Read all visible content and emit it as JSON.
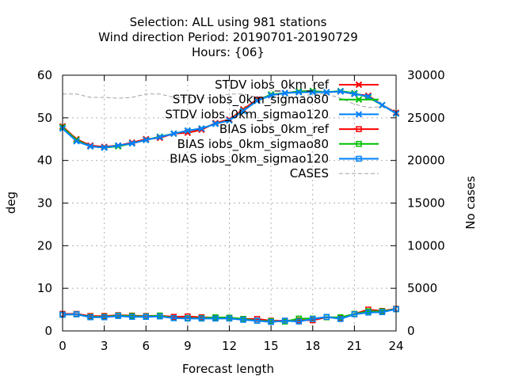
{
  "chart_data": {
    "type": "line",
    "title_lines": [
      "Selection: ALL using   981 stations",
      "Wind direction   Period: 20190701-20190729",
      "Hours: {06}"
    ],
    "xlabel": "Forecast length",
    "ylabel": "deg",
    "y2label": "No cases",
    "xlim": [
      0,
      24
    ],
    "ylim": [
      0,
      60
    ],
    "y2lim": [
      0,
      30000
    ],
    "xticks": [
      0,
      3,
      6,
      9,
      12,
      15,
      18,
      21,
      24
    ],
    "yticks": [
      0,
      10,
      20,
      30,
      40,
      50,
      60
    ],
    "y2ticks": [
      0,
      5000,
      10000,
      15000,
      20000,
      25000,
      30000
    ],
    "grid": "dotted",
    "legend_position": "top-right",
    "x": [
      0,
      1,
      2,
      3,
      4,
      5,
      6,
      7,
      8,
      9,
      10,
      11,
      12,
      13,
      14,
      15,
      16,
      17,
      18,
      19,
      20,
      21,
      22,
      23,
      24
    ],
    "series": [
      {
        "name": "STDV iobs_0km_ref",
        "color": "#ff0000",
        "marker": "x",
        "axis": "y1",
        "values": [
          48.0,
          45.0,
          43.5,
          43.2,
          43.5,
          44.2,
          45.0,
          45.3,
          46.3,
          46.5,
          47.2,
          48.8,
          49.6,
          52.0,
          54.3,
          55.3,
          55.8,
          56.2,
          56.3,
          56.0,
          56.2,
          55.6,
          55.2,
          53.0,
          51.2
        ]
      },
      {
        "name": "STDV iobs_0km_sigmao80",
        "color": "#00c000",
        "marker": "x",
        "axis": "y1",
        "values": [
          47.8,
          44.8,
          43.3,
          43.0,
          43.3,
          44.0,
          44.8,
          45.6,
          46.3,
          47.0,
          47.5,
          48.6,
          49.4,
          51.7,
          54.0,
          55.5,
          55.8,
          56.2,
          56.3,
          56.0,
          56.3,
          55.8,
          54.8,
          53.0,
          51.0
        ]
      },
      {
        "name": "STDV iobs_0km_sigmao120",
        "color": "#0080ff",
        "marker": "x",
        "axis": "y1",
        "values": [
          47.5,
          44.5,
          43.3,
          43.0,
          43.5,
          44.0,
          44.8,
          45.5,
          46.3,
          47.0,
          47.5,
          48.6,
          49.4,
          51.6,
          54.0,
          55.3,
          55.8,
          56.0,
          56.0,
          56.0,
          56.2,
          55.6,
          55.0,
          53.0,
          51.0
        ]
      },
      {
        "name": "BIAS iobs_0km_ref",
        "color": "#ff0000",
        "marker": "square",
        "axis": "y1",
        "values": [
          4.0,
          4.0,
          3.5,
          3.5,
          3.7,
          3.6,
          3.5,
          3.6,
          3.3,
          3.4,
          3.2,
          3.1,
          3.1,
          2.8,
          2.8,
          2.4,
          2.4,
          2.5,
          2.5,
          3.2,
          3.0,
          4.0,
          5.0,
          4.7,
          5.2
        ]
      },
      {
        "name": "BIAS iobs_0km_sigmao80",
        "color": "#00c000",
        "marker": "square",
        "axis": "y1",
        "values": [
          3.8,
          3.9,
          3.3,
          3.3,
          3.6,
          3.5,
          3.4,
          3.6,
          3.0,
          3.0,
          3.0,
          3.2,
          3.1,
          2.8,
          2.4,
          2.3,
          2.2,
          2.9,
          2.9,
          3.2,
          3.2,
          4.0,
          4.6,
          4.6,
          5.1
        ]
      },
      {
        "name": "BIAS iobs_0km_sigmao120",
        "color": "#0080ff",
        "marker": "square",
        "axis": "y1",
        "values": [
          3.8,
          3.9,
          3.2,
          3.2,
          3.5,
          3.3,
          3.3,
          3.4,
          3.0,
          2.9,
          2.9,
          2.9,
          2.9,
          2.6,
          2.4,
          2.1,
          2.4,
          2.2,
          2.8,
          3.3,
          2.8,
          3.9,
          4.3,
          4.4,
          5.1
        ]
      },
      {
        "name": "CASES",
        "color": "#a0a0a0",
        "marker": "none",
        "dash": "dashed",
        "axis": "y2",
        "values": [
          27800,
          27800,
          27400,
          27400,
          27300,
          27400,
          27800,
          27800,
          27400,
          27400,
          27300,
          27400,
          27800,
          27800,
          27400,
          27400,
          27300,
          27400,
          27800,
          27800,
          27300,
          26600,
          26200,
          26300,
          25800
        ]
      }
    ]
  }
}
